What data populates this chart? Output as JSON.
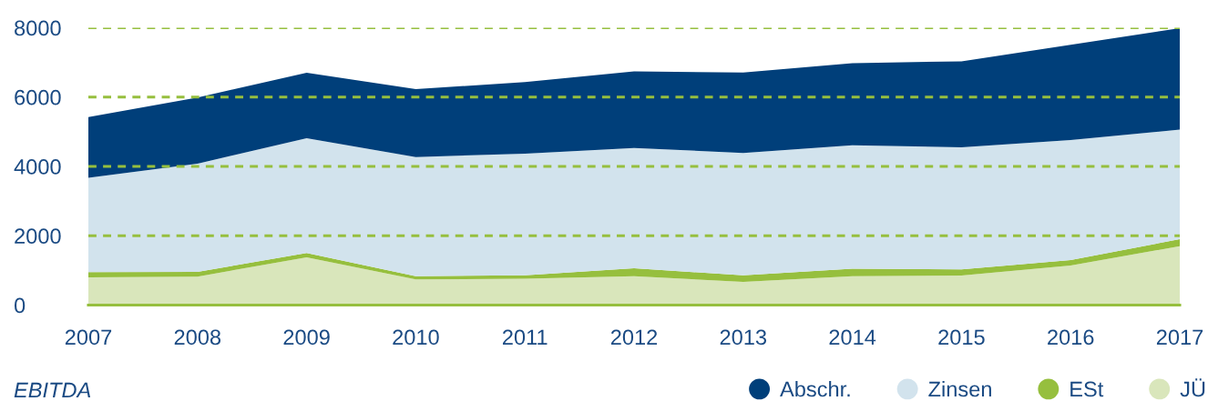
{
  "chart_data": {
    "type": "area",
    "title": "EBITDA",
    "categories": [
      "2007",
      "2008",
      "2009",
      "2010",
      "2011",
      "2012",
      "2013",
      "2014",
      "2015",
      "2016",
      "2017"
    ],
    "stacked": true,
    "series": [
      {
        "name": "JÜ",
        "color": "#d9e6bb",
        "values": [
          800,
          820,
          1380,
          740,
          760,
          830,
          670,
          830,
          850,
          1140,
          1700
        ]
      },
      {
        "name": "ESt",
        "color": "#96bf3e",
        "values": [
          150,
          140,
          120,
          90,
          100,
          230,
          190,
          220,
          180,
          160,
          200
        ]
      },
      {
        "name": "Zinsen",
        "color": "#d2e3ed",
        "values": [
          2720,
          3120,
          3310,
          3440,
          3510,
          3470,
          3530,
          3560,
          3520,
          3460,
          3160
        ]
      },
      {
        "name": "Abschr.",
        "color": "#003f7a",
        "values": [
          1750,
          1910,
          1890,
          1960,
          2060,
          2210,
          2320,
          2370,
          2480,
          2750,
          2930
        ]
      }
    ],
    "ylim": [
      0,
      8000
    ],
    "yticks": [
      0,
      2000,
      4000,
      6000,
      8000
    ],
    "grid": "y",
    "legend": "bottom right"
  }
}
